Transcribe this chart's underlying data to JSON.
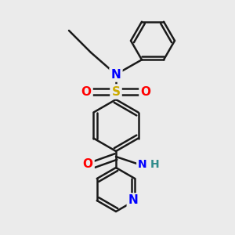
{
  "background_color": "#ebebeb",
  "line_color": "#1a1a1a",
  "bond_width": 1.8,
  "atom_colors": {
    "N": "#0000FF",
    "O": "#FF0000",
    "S": "#CCAA00",
    "H": "#2F8B8B",
    "C": "#1a1a1a"
  },
  "font_size": 10,
  "figsize": [
    3.0,
    3.0
  ],
  "dpi": 100
}
